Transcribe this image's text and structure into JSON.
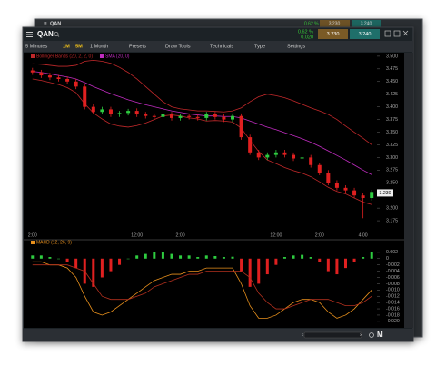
{
  "back_window": {
    "symbol": "QAN",
    "change_pct": "0.62 %",
    "bid": "3.230",
    "ask": "3.240"
  },
  "header": {
    "symbol": "QAN",
    "change_pct": "0.62 %",
    "change": "0.020",
    "bid": "3.230",
    "ask": "3.240"
  },
  "toolbar": [
    "5 Minutes",
    "1M",
    "5M",
    "1 Month",
    "Presets",
    "Draw Tools",
    "Technicals",
    "Type",
    "Settings"
  ],
  "footer": {
    "mode": "M"
  },
  "chart_data": [
    {
      "type": "candlestick",
      "categories": [
        "2:00",
        null,
        null,
        null,
        null,
        null,
        null,
        null,
        null,
        null,
        null,
        null,
        "12:00",
        null,
        null,
        null,
        null,
        "2:00",
        null,
        null,
        null,
        null,
        null,
        null,
        null,
        null,
        null,
        null,
        "12:00",
        null,
        null,
        null,
        null,
        "2:00",
        null,
        null,
        null,
        null,
        "4:00",
        null
      ],
      "open": [
        3.472,
        3.468,
        3.462,
        3.458,
        3.455,
        3.45,
        3.44,
        3.4,
        3.39,
        3.395,
        3.385,
        3.388,
        3.392,
        3.385,
        3.382,
        3.38,
        3.385,
        3.378,
        3.382,
        3.38,
        3.378,
        3.385,
        3.38,
        3.375,
        3.382,
        3.34,
        3.31,
        3.3,
        3.305,
        3.31,
        3.305,
        3.298,
        3.3,
        3.285,
        3.27,
        3.25,
        3.24,
        3.235,
        3.225,
        3.22
      ],
      "high": [
        3.477,
        3.473,
        3.467,
        3.463,
        3.46,
        3.455,
        3.445,
        3.405,
        3.4,
        3.4,
        3.392,
        3.396,
        3.397,
        3.39,
        3.387,
        3.39,
        3.39,
        3.386,
        3.387,
        3.385,
        3.39,
        3.39,
        3.385,
        3.387,
        3.387,
        3.345,
        3.315,
        3.31,
        3.315,
        3.315,
        3.31,
        3.305,
        3.305,
        3.29,
        3.275,
        3.255,
        3.245,
        3.24,
        3.23,
        3.236
      ],
      "low": [
        3.463,
        3.457,
        3.453,
        3.45,
        3.445,
        3.435,
        3.395,
        3.385,
        3.385,
        3.38,
        3.38,
        3.383,
        3.38,
        3.377,
        3.375,
        3.375,
        3.373,
        3.373,
        3.375,
        3.373,
        3.373,
        3.375,
        3.37,
        3.37,
        3.335,
        3.305,
        3.295,
        3.295,
        3.3,
        3.3,
        3.293,
        3.293,
        3.28,
        3.265,
        3.245,
        3.235,
        3.23,
        3.22,
        3.18,
        3.215
      ],
      "close": [
        3.468,
        3.462,
        3.458,
        3.455,
        3.45,
        3.44,
        3.4,
        3.39,
        3.395,
        3.385,
        3.388,
        3.392,
        3.385,
        3.382,
        3.38,
        3.385,
        3.378,
        3.382,
        3.38,
        3.378,
        3.385,
        3.38,
        3.375,
        3.382,
        3.34,
        3.31,
        3.3,
        3.305,
        3.31,
        3.305,
        3.298,
        3.3,
        3.285,
        3.27,
        3.25,
        3.24,
        3.235,
        3.225,
        3.22,
        3.232
      ],
      "up_color": "#2ecc40",
      "down_color": "#e02020",
      "series": [
        {
          "name": "Bollinger Bands (20, 2, 2, 0)",
          "color": "#c0282a",
          "upper": [
            3.485,
            3.484,
            3.482,
            3.48,
            3.48,
            3.482,
            3.49,
            3.492,
            3.49,
            3.486,
            3.478,
            3.468,
            3.455,
            3.44,
            3.425,
            3.41,
            3.4,
            3.396,
            3.394,
            3.392,
            3.392,
            3.391,
            3.39,
            3.392,
            3.398,
            3.41,
            3.42,
            3.425,
            3.422,
            3.418,
            3.412,
            3.405,
            3.398,
            3.392,
            3.385,
            3.375,
            3.362,
            3.35,
            3.338,
            3.325
          ],
          "lower": [
            3.455,
            3.452,
            3.448,
            3.444,
            3.438,
            3.428,
            3.406,
            3.388,
            3.376,
            3.366,
            3.362,
            3.36,
            3.363,
            3.368,
            3.375,
            3.382,
            3.384,
            3.382,
            3.378,
            3.376,
            3.372,
            3.373,
            3.372,
            3.37,
            3.358,
            3.334,
            3.312,
            3.295,
            3.288,
            3.28,
            3.274,
            3.269,
            3.262,
            3.252,
            3.241,
            3.233,
            3.228,
            3.22,
            3.212,
            3.207
          ]
        },
        {
          "name": "SMA (20, 0)",
          "color": "#c02cc0",
          "values": [
            3.47,
            3.468,
            3.465,
            3.462,
            3.459,
            3.455,
            3.448,
            3.44,
            3.433,
            3.426,
            3.42,
            3.414,
            3.409,
            3.404,
            3.4,
            3.396,
            3.392,
            3.389,
            3.386,
            3.384,
            3.382,
            3.382,
            3.381,
            3.381,
            3.378,
            3.372,
            3.366,
            3.36,
            3.355,
            3.349,
            3.343,
            3.337,
            3.33,
            3.322,
            3.313,
            3.304,
            3.295,
            3.285,
            3.275,
            3.266
          ]
        }
      ],
      "last_price": {
        "value": 3.23,
        "label": "3.230"
      },
      "ylim": [
        3.159,
        3.507
      ],
      "yticks": [
        {
          "value": 3.5,
          "label": "3.500"
        },
        3.475,
        {
          "value": 3.45,
          "label": "3.450"
        },
        3.425,
        {
          "value": 3.4,
          "label": "3.400"
        },
        3.375,
        {
          "value": 3.35,
          "label": "3.350"
        },
        3.325,
        {
          "value": 3.3,
          "label": "3.300"
        },
        3.275,
        {
          "value": 3.25,
          "label": "3.250"
        },
        {
          "value": 3.2,
          "label": "3.200"
        },
        3.175
      ],
      "grid": false
    },
    {
      "type": "macd",
      "name": "MACD (12, 26, 9)",
      "histogram": [
        0.001,
        0.001,
        0.0005,
        0,
        -0.001,
        -0.003,
        -0.008,
        -0.009,
        -0.006,
        -0.004,
        -0.002,
        0,
        0.001,
        0.0015,
        0.002,
        0.002,
        0.0015,
        0.001,
        0.001,
        0.0005,
        0.001,
        0.0008,
        0.0005,
        0.0006,
        -0.004,
        -0.009,
        -0.008,
        -0.005,
        -0.002,
        0.0005,
        0.001,
        0.0012,
        0.0005,
        -0.001,
        -0.004,
        -0.005,
        -0.003,
        -0.001,
        0.0005,
        0.002
      ],
      "up_color": "#2ecc40",
      "down_color": "#e02020",
      "series": [
        {
          "color": "#e8901c",
          "values": [
            -0.001,
            -0.001,
            -0.002,
            -0.002,
            -0.003,
            -0.006,
            -0.012,
            -0.017,
            -0.018,
            -0.017,
            -0.015,
            -0.013,
            -0.011,
            -0.009,
            -0.007,
            -0.006,
            -0.005,
            -0.005,
            -0.004,
            -0.004,
            -0.003,
            -0.003,
            -0.003,
            -0.003,
            -0.008,
            -0.015,
            -0.019,
            -0.019,
            -0.018,
            -0.016,
            -0.014,
            -0.013,
            -0.013,
            -0.014,
            -0.017,
            -0.019,
            -0.018,
            -0.016,
            -0.013,
            -0.01
          ]
        },
        {
          "color": "#b3301e",
          "values": [
            -0.002,
            -0.002,
            -0.002,
            -0.002,
            -0.002,
            -0.003,
            -0.004,
            -0.008,
            -0.012,
            -0.013,
            -0.013,
            -0.013,
            -0.012,
            -0.011,
            -0.009,
            -0.008,
            -0.007,
            -0.006,
            -0.005,
            -0.005,
            -0.004,
            -0.004,
            -0.004,
            -0.004,
            -0.004,
            -0.006,
            -0.011,
            -0.014,
            -0.016,
            -0.016,
            -0.015,
            -0.014,
            -0.013,
            -0.013,
            -0.013,
            -0.014,
            -0.015,
            -0.015,
            -0.014,
            -0.012
          ]
        }
      ],
      "ylim": [
        -0.0212,
        0.0037
      ],
      "yticks": [
        0.002,
        0,
        -0.002,
        -0.004,
        -0.006,
        -0.008,
        {
          "value": -0.01,
          "label": "-0.010"
        },
        -0.012,
        -0.014,
        -0.016,
        -0.018,
        {
          "value": -0.02,
          "label": "-0.020"
        }
      ],
      "grid": false
    }
  ]
}
